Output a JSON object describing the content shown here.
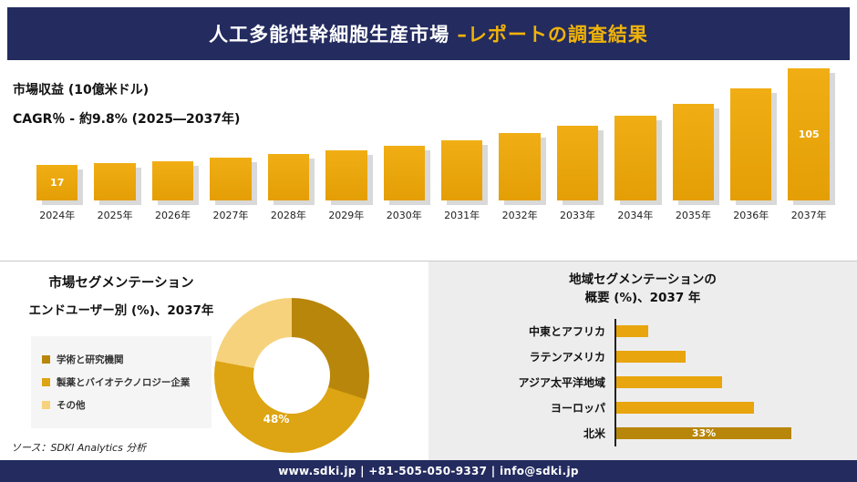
{
  "header": {
    "title_main": "人工多能性幹細胞生産市場 ",
    "title_accent": "–レポートの調査結果"
  },
  "footer": {
    "text": "www.sdki.jp | +81-505-050-9337 | info@sdki.jp"
  },
  "colors": {
    "navy": "#232b5f",
    "gold": "#e8a50d",
    "dark_gold": "#b8860b",
    "light_gold": "#f6d27c",
    "accent_text": "#f0b30a"
  },
  "chart_data": [
    {
      "type": "bar",
      "title": "市場収益 (10億米ドル)",
      "subtitle": "CAGR％ - 約9.8% (2025―2037年)",
      "ylabel": "10億米ドル",
      "categories": [
        "2024年",
        "2025年",
        "2026年",
        "2027年",
        "2028年",
        "2029年",
        "2030年",
        "2031年",
        "2032年",
        "2033年",
        "2034年",
        "2035年",
        "2036年",
        "2037年"
      ],
      "values": [
        17,
        19,
        21,
        24,
        27,
        31,
        35,
        40,
        46,
        53,
        62,
        73,
        87,
        105
      ],
      "labeled_points": {
        "2024年": "17",
        "2037年": "105"
      },
      "bar_color": "#e8a50d",
      "legend_position": "none",
      "grid": false
    },
    {
      "type": "pie",
      "title": "市場セグメンテーション",
      "subtitle": "エンドユーザー別 (%)、2037年",
      "segments": [
        {
          "label": "学術と研究機関",
          "value": 30,
          "color": "#b8860b"
        },
        {
          "label": "製薬とバイオテクノロジー企業",
          "value": 48,
          "color": "#dda413"
        },
        {
          "label": "その他",
          "value": 22,
          "color": "#f6d27c"
        }
      ],
      "value_label": "48%",
      "source": "ソース：SDKI Analytics 分析",
      "legend_position": "left"
    },
    {
      "type": "bar",
      "orientation": "horizontal",
      "title": "地域セグメンテーションの概要 (%)、2037 年",
      "title_lines": [
        "地域セグメンテーションの",
        "概要 (%)、2037 年"
      ],
      "categories": [
        "中東とアフリカ",
        "ラテンアメリカ",
        "アジア太平洋地域",
        "ヨーロッパ",
        "北米"
      ],
      "values": [
        6,
        13,
        20,
        26,
        33
      ],
      "colors": [
        "#e8a50d",
        "#e8a50d",
        "#e8a50d",
        "#e8a50d",
        "#b8860b"
      ],
      "labeled_points": {
        "北米": "33%"
      },
      "grid": false
    }
  ]
}
